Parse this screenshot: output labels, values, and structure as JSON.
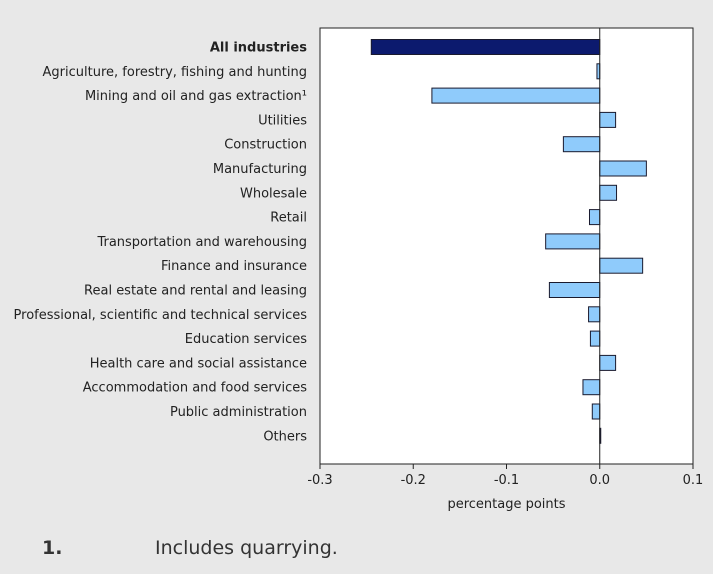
{
  "chart_data": {
    "type": "bar",
    "orientation": "horizontal",
    "categories": [
      "All industries",
      "Agriculture, forestry, fishing and hunting",
      "Mining and oil and gas extraction¹",
      "Utilities",
      "Construction",
      "Manufacturing",
      "Wholesale",
      "Retail",
      "Transportation and warehousing",
      "Finance and insurance",
      "Real estate and rental and leasing",
      "Professional, scientific and technical services",
      "Education services",
      "Health care and social assistance",
      "Accommodation and food services",
      "Public administration",
      "Others"
    ],
    "values": [
      -0.245,
      -0.003,
      -0.18,
      0.017,
      -0.039,
      0.05,
      0.018,
      -0.011,
      -0.058,
      0.046,
      -0.054,
      -0.012,
      -0.01,
      0.017,
      -0.018,
      -0.008,
      0.001
    ],
    "highlight_index": 0,
    "xlabel": "percentage points",
    "xlim": [
      -0.3,
      0.1
    ],
    "xticks": [
      -0.3,
      -0.2,
      -0.1,
      0.0,
      0.1
    ],
    "xtick_labels": [
      "-0.3",
      "-0.2",
      "-0.1",
      "0.0",
      "0.1"
    ],
    "grid": false,
    "colors": {
      "highlight": "#0c1a6e",
      "bar": "#8fcbfb",
      "bar_stroke": "#1a1a2e",
      "plot_bg": "#ffffff",
      "page_bg": "#e8e8e8"
    }
  },
  "footnote": {
    "number": "1.",
    "text": "Includes quarrying."
  }
}
